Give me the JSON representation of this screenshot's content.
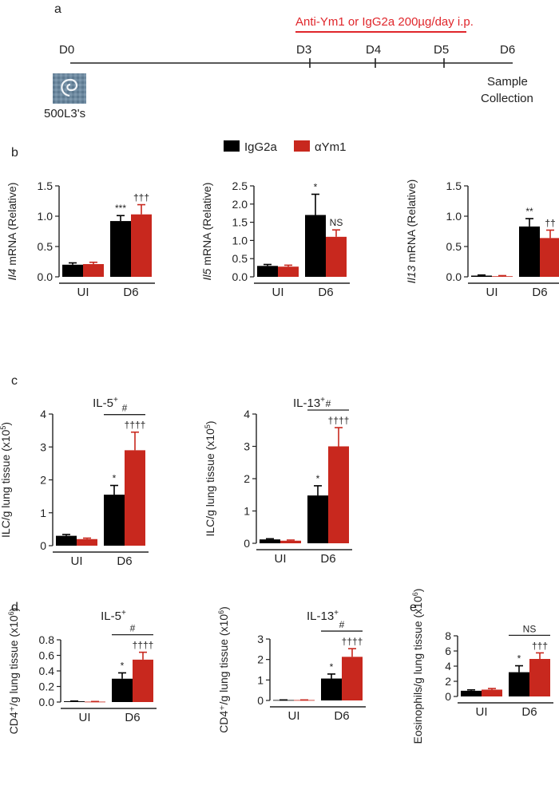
{
  "panels": {
    "a": "a",
    "b": "b",
    "c": "c",
    "d": "d",
    "e": "e"
  },
  "timeline": {
    "treatment_label": "Anti-Ym1 or IgG2a 200µg/day i.p.",
    "days": [
      "D0",
      "D3",
      "D4",
      "D5",
      "D6"
    ],
    "inoculum_label": "500L3's",
    "end_label_line1": "Sample",
    "end_label_line2": "Collection"
  },
  "legend": {
    "items": [
      {
        "name": "IgG2a",
        "color": "#000000"
      },
      {
        "name": "αYm1",
        "color": "#c8281e"
      }
    ]
  },
  "colors": {
    "igg2a": "#000000",
    "aym1": "#c8281e",
    "treatment": "#e0262b"
  },
  "chart_data": [
    {
      "id": "b1",
      "type": "bar",
      "ylabel_gene": "Il4",
      "ylabel_rest": " mRNA (Relative)",
      "categories": [
        "UI",
        "D6"
      ],
      "yticks": [
        "0.0",
        "0.5",
        "1.0",
        "1.5"
      ],
      "ylim": [
        0,
        1.5
      ],
      "series": [
        {
          "name": "IgG2a",
          "values": [
            0.2,
            0.92
          ],
          "errors": [
            0.03,
            0.09
          ]
        },
        {
          "name": "αYm1",
          "values": [
            0.21,
            1.03
          ],
          "errors": [
            0.03,
            0.16
          ]
        }
      ],
      "annotations": [
        "***",
        "†††"
      ]
    },
    {
      "id": "b2",
      "type": "bar",
      "ylabel_gene": "Il5",
      "ylabel_rest": " mRNA (Relative)",
      "categories": [
        "UI",
        "D6"
      ],
      "yticks": [
        "0.0",
        "0.5",
        "1.0",
        "1.5",
        "2.0",
        "2.5"
      ],
      "ylim": [
        0,
        2.5
      ],
      "series": [
        {
          "name": "IgG2a",
          "values": [
            0.3,
            1.7
          ],
          "errors": [
            0.04,
            0.57
          ]
        },
        {
          "name": "αYm1",
          "values": [
            0.28,
            1.1
          ],
          "errors": [
            0.04,
            0.19
          ]
        }
      ],
      "annotations": [
        "*",
        "NS"
      ]
    },
    {
      "id": "b3",
      "type": "bar",
      "ylabel_gene": "Il13",
      "ylabel_rest": " mRNA (Relative)",
      "categories": [
        "UI",
        "D6"
      ],
      "yticks": [
        "0.0",
        "0.5",
        "1.0",
        "1.5"
      ],
      "ylim": [
        0,
        1.5
      ],
      "series": [
        {
          "name": "IgG2a",
          "values": [
            0.02,
            0.83
          ],
          "errors": [
            0.01,
            0.13
          ]
        },
        {
          "name": "αYm1",
          "values": [
            0.01,
            0.64
          ],
          "errors": [
            0.01,
            0.13
          ]
        }
      ],
      "annotations": [
        "**",
        "††"
      ]
    },
    {
      "id": "c1",
      "type": "bar",
      "title_main": "IL-5",
      "title_sup": "+",
      "ylabel_main": "ILC/g lung tissue (x10",
      "ylabel_sup": "5",
      "ylabel_end": ")",
      "categories": [
        "UI",
        "D6"
      ],
      "yticks": [
        "0",
        "1",
        "2",
        "3",
        "4"
      ],
      "ylim": [
        0,
        4
      ],
      "series": [
        {
          "name": "IgG2a",
          "values": [
            0.3,
            1.55
          ],
          "errors": [
            0.04,
            0.28
          ]
        },
        {
          "name": "αYm1",
          "values": [
            0.2,
            2.9
          ],
          "errors": [
            0.03,
            0.55
          ]
        }
      ],
      "annotations": [
        "*",
        "††††"
      ],
      "bracket": "#"
    },
    {
      "id": "c2",
      "type": "bar",
      "title_main": "IL-13",
      "title_sup": "+",
      "ylabel_main": "ILC/g lung tissue (x10",
      "ylabel_sup": "5",
      "ylabel_end": ")",
      "categories": [
        "UI",
        "D6"
      ],
      "yticks": [
        "0",
        "1",
        "2",
        "3",
        "4"
      ],
      "ylim": [
        0,
        4
      ],
      "series": [
        {
          "name": "IgG2a",
          "values": [
            0.12,
            1.48
          ],
          "errors": [
            0.02,
            0.3
          ]
        },
        {
          "name": "αYm1",
          "values": [
            0.08,
            3.0
          ],
          "errors": [
            0.02,
            0.58
          ]
        }
      ],
      "annotations": [
        "*",
        "††††"
      ],
      "bracket": "#"
    },
    {
      "id": "d1",
      "type": "bar",
      "title_main": "IL-5",
      "title_sup": "+",
      "ylabel_main": "CD4⁺/g lung tissue (x10",
      "ylabel_sup": "6",
      "ylabel_end": ")",
      "categories": [
        "UI",
        "D6"
      ],
      "yticks": [
        "0.0",
        "0.2",
        "0.4",
        "0.6",
        "0.8"
      ],
      "ylim": [
        0,
        0.8
      ],
      "series": [
        {
          "name": "IgG2a",
          "values": [
            0.01,
            0.3
          ],
          "errors": [
            0.003,
            0.075
          ]
        },
        {
          "name": "αYm1",
          "values": [
            0.005,
            0.545
          ],
          "errors": [
            0.002,
            0.095
          ]
        }
      ],
      "annotations": [
        "*",
        "††††"
      ],
      "bracket": "#"
    },
    {
      "id": "d2",
      "type": "bar",
      "title_main": "IL-13",
      "title_sup": "+",
      "ylabel_main": "CD4⁺/g lung tissue (x10",
      "ylabel_sup": "6",
      "ylabel_end": ")",
      "categories": [
        "UI",
        "D6"
      ],
      "yticks": [
        "0",
        "1",
        "2",
        "3"
      ],
      "ylim": [
        0,
        3
      ],
      "series": [
        {
          "name": "IgG2a",
          "values": [
            0.02,
            1.07
          ],
          "errors": [
            0.005,
            0.22
          ]
        },
        {
          "name": "αYm1",
          "values": [
            0.02,
            2.13
          ],
          "errors": [
            0.005,
            0.4
          ]
        }
      ],
      "annotations": [
        "*",
        "††††"
      ],
      "bracket": "#"
    },
    {
      "id": "e1",
      "type": "bar",
      "ylabel_main": "Eosinophils/g lung tissue (x10",
      "ylabel_sup": "6",
      "ylabel_end": ")",
      "categories": [
        "UI",
        "D6"
      ],
      "yticks": [
        "0",
        "2",
        "4",
        "6",
        "8"
      ],
      "ylim": [
        0,
        8
      ],
      "series": [
        {
          "name": "IgG2a",
          "values": [
            0.75,
            3.2
          ],
          "errors": [
            0.12,
            0.85
          ]
        },
        {
          "name": "αYm1",
          "values": [
            0.9,
            4.95
          ],
          "errors": [
            0.15,
            0.8
          ]
        }
      ],
      "annotations": [
        "*",
        "†††"
      ],
      "bracket": "NS"
    }
  ]
}
